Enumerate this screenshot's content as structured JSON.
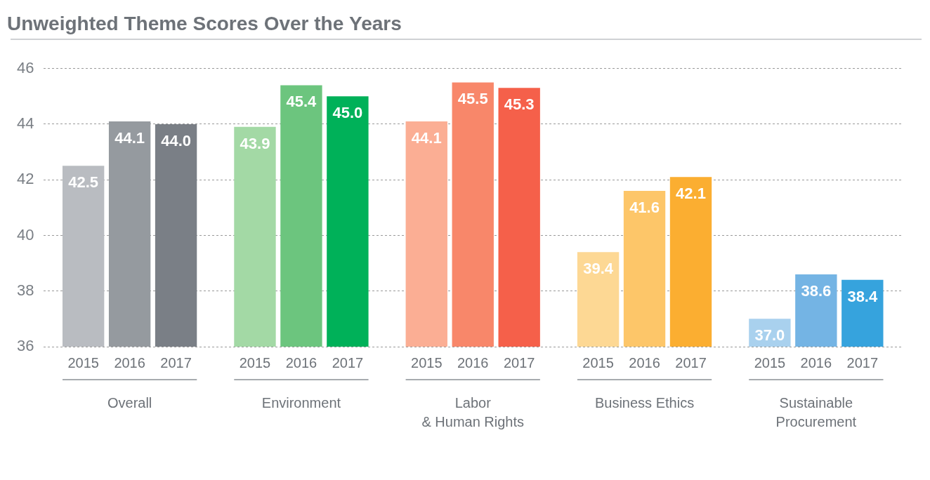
{
  "chart_data": {
    "type": "bar",
    "title": "Unweighted Theme Scores Over the Years",
    "categories": [
      "Overall",
      "Environment",
      "Labor & Human Rights",
      "Business Ethics",
      "Sustainable Procurement"
    ],
    "series": [
      {
        "name": "2015",
        "values": [
          42.5,
          43.9,
          44.1,
          39.4,
          37.0
        ],
        "value_labels": [
          "42.5",
          "43.9",
          "44.1",
          "39.4",
          "37.0"
        ],
        "colors": [
          "#b9bcc1",
          "#a3d9a5",
          "#fbae94",
          "#fdd894",
          "#a9d1ee"
        ]
      },
      {
        "name": "2016",
        "values": [
          44.1,
          45.4,
          45.5,
          41.6,
          38.6
        ],
        "value_labels": [
          "44.1",
          "45.4",
          "45.5",
          "41.6",
          "38.6"
        ],
        "colors": [
          "#959a9f",
          "#6cc57e",
          "#f8876a",
          "#fdc669",
          "#74b4e4"
        ]
      },
      {
        "name": "2017",
        "values": [
          44.0,
          45.0,
          45.3,
          42.1,
          38.4
        ],
        "value_labels": [
          "44.0",
          "45.0",
          "45.3",
          "42.1",
          "38.4"
        ],
        "colors": [
          "#7a7f86",
          "#00b159",
          "#f5604a",
          "#fbae31",
          "#36a3dd"
        ]
      }
    ],
    "ylim": [
      36,
      46
    ],
    "yticks": [
      36,
      38,
      40,
      42,
      44,
      46
    ],
    "grid": true,
    "data_labels": true
  }
}
